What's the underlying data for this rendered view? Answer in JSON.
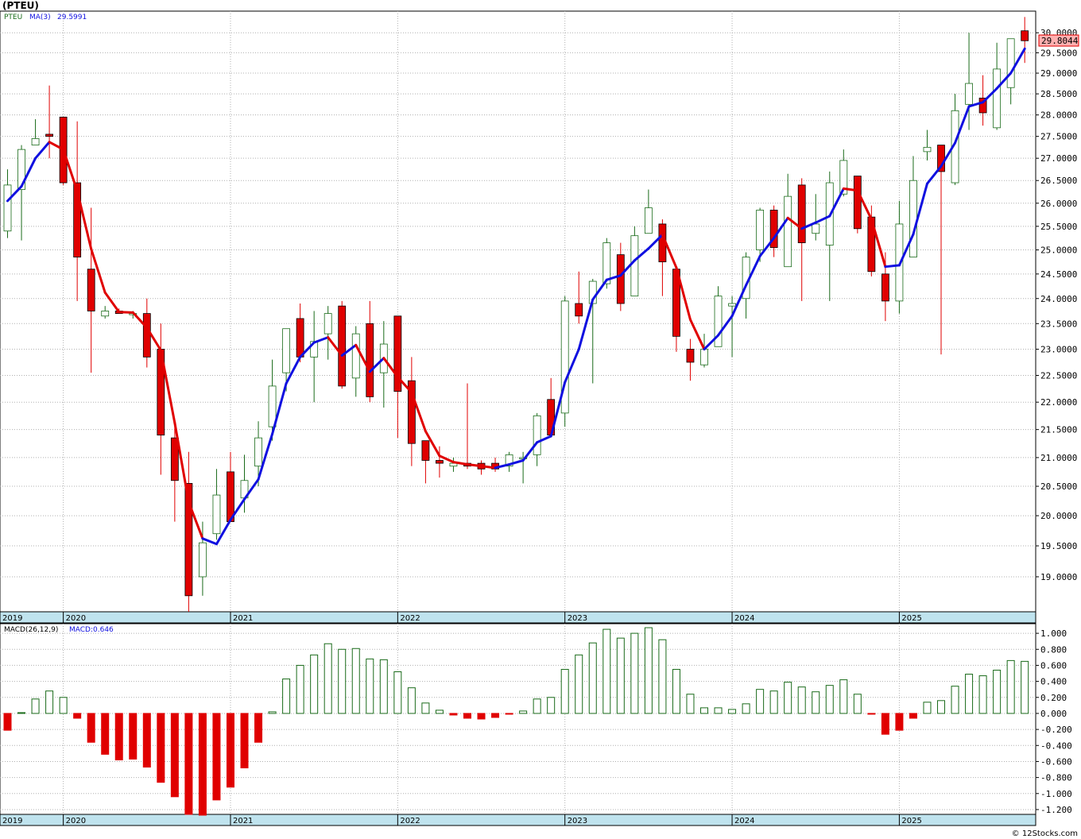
{
  "title": "(PTEU)",
  "credit": "© 12Stocks.com",
  "colors": {
    "up": "#1a6b1a",
    "down": "#e00000",
    "ma_up": "#1010e0",
    "ma_down": "#e00000",
    "axis_band": "#bfe3ee",
    "grid": "#b0b0b0"
  },
  "chart_data": [
    {
      "type": "candlestick",
      "legend": {
        "symbol": "PTEU",
        "ma_label": "MA(3)",
        "ma_value": "29.5991"
      },
      "last_price": "29.8044",
      "ylim": [
        18.45,
        30.55
      ],
      "y_scale": "log",
      "y_ticks": [
        "19.0000",
        "19.5000",
        "20.0000",
        "20.5000",
        "21.0000",
        "21.5000",
        "22.0000",
        "22.5000",
        "23.0000",
        "23.5000",
        "24.0000",
        "24.5000",
        "25.0000",
        "25.5000",
        "26.0000",
        "26.5000",
        "27.0000",
        "27.5000",
        "28.0000",
        "28.5000",
        "29.0000",
        "29.5000",
        "30.0000"
      ],
      "x_labels": [
        "2019",
        "2020",
        "2021",
        "2022",
        "2023",
        "2024",
        "2025"
      ],
      "candles": [
        {
          "d": "2019-09",
          "o": 25.4,
          "h": 26.75,
          "l": 25.25,
          "c": 26.4
        },
        {
          "d": "2019-10",
          "o": 26.3,
          "h": 27.3,
          "l": 25.2,
          "c": 27.2
        },
        {
          "d": "2019-11",
          "o": 27.3,
          "h": 27.9,
          "l": 27.3,
          "c": 27.45
        },
        {
          "d": "2019-12",
          "o": 27.55,
          "h": 28.7,
          "l": 27.0,
          "c": 27.5
        },
        {
          "d": "2020-01",
          "o": 27.95,
          "h": 27.95,
          "l": 26.4,
          "c": 26.45
        },
        {
          "d": "2020-02",
          "o": 26.45,
          "h": 27.85,
          "l": 23.95,
          "c": 24.85
        },
        {
          "d": "2020-03",
          "o": 24.6,
          "h": 25.9,
          "l": 22.55,
          "c": 23.75
        },
        {
          "d": "2020-04",
          "o": 23.65,
          "h": 23.85,
          "l": 23.6,
          "c": 23.75
        },
        {
          "d": "2020-05",
          "o": 23.75,
          "h": 23.8,
          "l": 23.7,
          "c": 23.7
        },
        {
          "d": "2020-06",
          "o": 23.7,
          "h": 23.75,
          "l": 23.6,
          "c": 23.7
        },
        {
          "d": "2020-07",
          "o": 23.7,
          "h": 24.0,
          "l": 22.65,
          "c": 22.85
        },
        {
          "d": "2020-08",
          "o": 23.0,
          "h": 23.5,
          "l": 20.7,
          "c": 21.4
        },
        {
          "d": "2020-09",
          "o": 21.35,
          "h": 21.55,
          "l": 19.9,
          "c": 20.6
        },
        {
          "d": "2020-10",
          "o": 20.55,
          "h": 21.1,
          "l": 18.45,
          "c": 18.7
        },
        {
          "d": "2020-11",
          "o": 19.0,
          "h": 19.9,
          "l": 18.7,
          "c": 19.55
        },
        {
          "d": "2020-12",
          "o": 19.7,
          "h": 20.8,
          "l": 19.6,
          "c": 20.35
        },
        {
          "d": "2021-01",
          "o": 20.75,
          "h": 21.1,
          "l": 19.95,
          "c": 19.9
        },
        {
          "d": "2021-02",
          "o": 20.3,
          "h": 21.05,
          "l": 20.05,
          "c": 20.6
        },
        {
          "d": "2021-03",
          "o": 20.85,
          "h": 21.65,
          "l": 20.5,
          "c": 21.35
        },
        {
          "d": "2021-04",
          "o": 21.55,
          "h": 22.8,
          "l": 21.3,
          "c": 22.3
        },
        {
          "d": "2021-05",
          "o": 22.55,
          "h": 23.4,
          "l": 22.2,
          "c": 23.4
        },
        {
          "d": "2021-06",
          "o": 23.6,
          "h": 23.9,
          "l": 22.75,
          "c": 22.85
        },
        {
          "d": "2021-07",
          "o": 22.85,
          "h": 23.75,
          "l": 22.0,
          "c": 23.15
        },
        {
          "d": "2021-08",
          "o": 23.3,
          "h": 23.85,
          "l": 22.8,
          "c": 23.7
        },
        {
          "d": "2021-09",
          "o": 23.85,
          "h": 23.95,
          "l": 22.25,
          "c": 22.3
        },
        {
          "d": "2021-10",
          "o": 22.45,
          "h": 23.45,
          "l": 22.1,
          "c": 23.3
        },
        {
          "d": "2021-11",
          "o": 23.5,
          "h": 23.95,
          "l": 22.0,
          "c": 22.1
        },
        {
          "d": "2021-12",
          "o": 22.55,
          "h": 23.55,
          "l": 21.9,
          "c": 23.1
        },
        {
          "d": "2022-01",
          "o": 23.65,
          "h": 23.65,
          "l": 21.35,
          "c": 22.2
        },
        {
          "d": "2022-02",
          "o": 22.4,
          "h": 22.85,
          "l": 20.85,
          "c": 21.25
        },
        {
          "d": "2022-03",
          "o": 21.3,
          "h": 21.3,
          "l": 20.55,
          "c": 20.95
        },
        {
          "d": "2022-04",
          "o": 20.95,
          "h": 21.2,
          "l": 20.65,
          "c": 20.9
        },
        {
          "d": "2022-05",
          "o": 20.85,
          "h": 21.0,
          "l": 20.75,
          "c": 20.9
        },
        {
          "d": "2022-06",
          "o": 20.9,
          "h": 22.35,
          "l": 20.8,
          "c": 20.85
        },
        {
          "d": "2022-07",
          "o": 20.9,
          "h": 20.95,
          "l": 20.7,
          "c": 20.8
        },
        {
          "d": "2022-08",
          "o": 20.9,
          "h": 21.0,
          "l": 20.75,
          "c": 20.8
        },
        {
          "d": "2022-09",
          "o": 20.85,
          "h": 21.1,
          "l": 20.75,
          "c": 21.05
        },
        {
          "d": "2022-10",
          "o": 21.0,
          "h": 21.1,
          "l": 20.55,
          "c": 21.0
        },
        {
          "d": "2022-11",
          "o": 21.05,
          "h": 21.8,
          "l": 20.85,
          "c": 21.75
        },
        {
          "d": "2022-12",
          "o": 22.05,
          "h": 22.45,
          "l": 21.4,
          "c": 21.4
        },
        {
          "d": "2023-01",
          "o": 21.8,
          "h": 24.05,
          "l": 21.55,
          "c": 23.95
        },
        {
          "d": "2023-02",
          "o": 23.9,
          "h": 24.55,
          "l": 23.5,
          "c": 23.65
        },
        {
          "d": "2023-03",
          "o": 23.9,
          "h": 24.4,
          "l": 22.35,
          "c": 24.35
        },
        {
          "d": "2023-04",
          "o": 24.3,
          "h": 25.25,
          "l": 24.2,
          "c": 25.15
        },
        {
          "d": "2023-05",
          "o": 24.9,
          "h": 25.15,
          "l": 23.75,
          "c": 23.9
        },
        {
          "d": "2023-06",
          "o": 24.05,
          "h": 25.5,
          "l": 24.05,
          "c": 25.3
        },
        {
          "d": "2023-07",
          "o": 25.35,
          "h": 26.3,
          "l": 25.35,
          "c": 25.9
        },
        {
          "d": "2023-08",
          "o": 25.55,
          "h": 25.65,
          "l": 24.05,
          "c": 24.75
        },
        {
          "d": "2023-09",
          "o": 24.6,
          "h": 24.6,
          "l": 22.95,
          "c": 23.25
        },
        {
          "d": "2023-10",
          "o": 23.0,
          "h": 23.2,
          "l": 22.4,
          "c": 22.75
        },
        {
          "d": "2023-11",
          "o": 22.7,
          "h": 23.3,
          "l": 22.65,
          "c": 23.0
        },
        {
          "d": "2023-12",
          "o": 23.05,
          "h": 24.25,
          "l": 23.05,
          "c": 24.05
        },
        {
          "d": "2024-01",
          "o": 23.85,
          "h": 24.05,
          "l": 22.85,
          "c": 23.9
        },
        {
          "d": "2024-02",
          "o": 24.0,
          "h": 24.95,
          "l": 23.6,
          "c": 24.85
        },
        {
          "d": "2024-03",
          "o": 25.0,
          "h": 25.9,
          "l": 24.75,
          "c": 25.85
        },
        {
          "d": "2024-04",
          "o": 25.85,
          "h": 25.95,
          "l": 24.85,
          "c": 25.05
        },
        {
          "d": "2024-05",
          "o": 24.65,
          "h": 26.65,
          "l": 24.65,
          "c": 26.15
        },
        {
          "d": "2024-06",
          "o": 26.4,
          "h": 26.55,
          "l": 23.95,
          "c": 25.15
        },
        {
          "d": "2024-07",
          "o": 25.35,
          "h": 26.2,
          "l": 25.2,
          "c": 25.55
        },
        {
          "d": "2024-08",
          "o": 25.1,
          "h": 26.7,
          "l": 23.95,
          "c": 26.45
        },
        {
          "d": "2024-09",
          "o": 26.2,
          "h": 27.2,
          "l": 26.15,
          "c": 26.95
        },
        {
          "d": "2024-10",
          "o": 26.6,
          "h": 26.6,
          "l": 25.35,
          "c": 25.45
        },
        {
          "d": "2024-11",
          "o": 25.7,
          "h": 25.95,
          "l": 24.45,
          "c": 24.55
        },
        {
          "d": "2024-12",
          "o": 24.5,
          "h": 24.95,
          "l": 23.55,
          "c": 23.95
        },
        {
          "d": "2025-01",
          "o": 23.95,
          "h": 26.05,
          "l": 23.7,
          "c": 25.55
        },
        {
          "d": "2025-02",
          "o": 24.85,
          "h": 27.05,
          "l": 24.85,
          "c": 26.5
        },
        {
          "d": "2025-03",
          "o": 27.15,
          "h": 27.65,
          "l": 26.95,
          "c": 27.25
        },
        {
          "d": "2025-04",
          "o": 27.3,
          "h": 27.3,
          "l": 22.9,
          "c": 26.7
        },
        {
          "d": "2025-05",
          "o": 26.45,
          "h": 28.5,
          "l": 26.4,
          "c": 28.1
        },
        {
          "d": "2025-06",
          "o": 28.25,
          "h": 30.0,
          "l": 27.65,
          "c": 28.75
        },
        {
          "d": "2025-07",
          "o": 28.4,
          "h": 28.95,
          "l": 27.75,
          "c": 28.05
        },
        {
          "d": "2025-08",
          "o": 27.7,
          "h": 29.75,
          "l": 27.65,
          "c": 29.1
        },
        {
          "d": "2025-09",
          "o": 28.65,
          "h": 29.85,
          "l": 28.25,
          "c": 29.85
        },
        {
          "d": "2025-10",
          "o": 30.05,
          "h": 30.4,
          "l": 29.25,
          "c": 29.8
        }
      ],
      "ma": [
        26.05,
        26.37,
        27.0,
        27.37,
        27.2,
        26.27,
        25.02,
        24.12,
        23.73,
        23.72,
        23.42,
        22.98,
        21.62,
        20.23,
        19.62,
        19.53,
        19.93,
        20.28,
        20.62,
        21.42,
        22.35,
        22.85,
        23.13,
        23.23,
        22.88,
        23.08,
        22.57,
        22.83,
        22.47,
        22.18,
        21.47,
        21.03,
        20.92,
        20.88,
        20.85,
        20.82,
        20.88,
        20.95,
        21.27,
        21.38,
        22.37,
        23.0,
        23.98,
        24.38,
        24.47,
        24.78,
        25.03,
        25.32,
        24.63,
        23.58,
        23.0,
        23.27,
        23.65,
        24.27,
        24.87,
        25.25,
        25.68,
        25.45,
        25.58,
        25.72,
        26.32,
        26.28,
        25.65,
        24.65,
        24.68,
        25.33,
        26.43,
        26.82,
        27.35,
        28.2,
        28.3,
        28.63,
        29.0,
        29.6
      ],
      "ma_colors": [
        "up",
        "up",
        "up",
        "up",
        "down",
        "down",
        "down",
        "down",
        "down",
        "down",
        "down",
        "down",
        "down",
        "down",
        "down",
        "up",
        "up",
        "up",
        "up",
        "up",
        "up",
        "up",
        "up",
        "up",
        "down",
        "up",
        "down",
        "up",
        "down",
        "down",
        "down",
        "down",
        "down",
        "down",
        "down",
        "down",
        "up",
        "up",
        "up",
        "up",
        "up",
        "up",
        "up",
        "up",
        "up",
        "up",
        "up",
        "up",
        "down",
        "down",
        "down",
        "up",
        "up",
        "up",
        "up",
        "up",
        "up",
        "down",
        "up",
        "up",
        "up",
        "down",
        "down",
        "down",
        "up",
        "up",
        "up",
        "up",
        "up",
        "up",
        "up",
        "up",
        "up",
        "up"
      ]
    },
    {
      "type": "bar",
      "legend": {
        "label": "MACD(26,12,9)",
        "value_label": "MACD:0.646"
      },
      "ylim": [
        -1.26,
        1.12
      ],
      "y_ticks": [
        "1.000",
        "0.800",
        "0.600",
        "0.400",
        "0.200",
        "0.000",
        "-0.200",
        "-0.400",
        "-0.600",
        "-0.800",
        "-1.000",
        "-1.200"
      ],
      "x_labels": [
        "2019",
        "2020",
        "2021",
        "2022",
        "2023",
        "2024",
        "2025"
      ],
      "values": [
        -0.21,
        0.01,
        0.18,
        0.28,
        0.2,
        -0.06,
        -0.36,
        -0.51,
        -0.58,
        -0.57,
        -0.67,
        -0.86,
        -1.04,
        -1.26,
        -1.27,
        -1.08,
        -0.92,
        -0.68,
        -0.36,
        0.02,
        0.43,
        0.6,
        0.73,
        0.87,
        0.8,
        0.81,
        0.68,
        0.67,
        0.52,
        0.32,
        0.13,
        0.04,
        -0.02,
        -0.06,
        -0.07,
        -0.05,
        -0.01,
        0.03,
        0.18,
        0.2,
        0.55,
        0.73,
        0.88,
        1.05,
        0.94,
        1.0,
        1.07,
        0.92,
        0.55,
        0.24,
        0.07,
        0.07,
        0.05,
        0.12,
        0.3,
        0.28,
        0.39,
        0.33,
        0.27,
        0.35,
        0.42,
        0.24,
        -0.01,
        -0.26,
        -0.21,
        -0.06,
        0.14,
        0.16,
        0.34,
        0.49,
        0.47,
        0.54,
        0.66,
        0.65
      ]
    }
  ]
}
